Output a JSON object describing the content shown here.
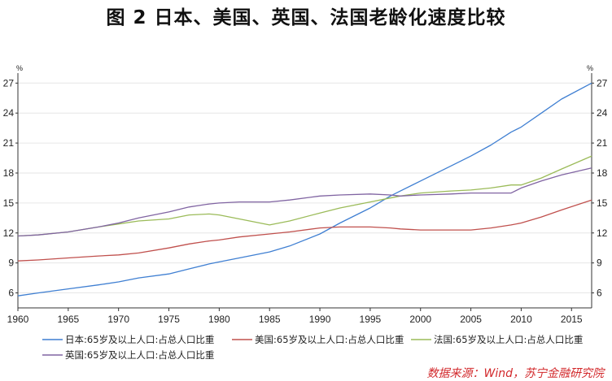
{
  "title": "图 2    日本、美国、英国、法国老龄化速度比较",
  "source": "数据来源：Wind，苏宁金融研究院",
  "chart_data": {
    "type": "line",
    "ylim": [
      4.5,
      28
    ],
    "xlim": [
      1960,
      2017
    ],
    "y_unit_left": "%",
    "y_unit_right": "%",
    "yticks": [
      6,
      9,
      12,
      15,
      18,
      21,
      24,
      27
    ],
    "xticks": [
      1960,
      1965,
      1970,
      1975,
      1980,
      1985,
      1990,
      1995,
      2000,
      2005,
      2010,
      2015
    ],
    "grid": true,
    "legend_position": "bottom",
    "x": [
      1960,
      1962,
      1965,
      1968,
      1970,
      1972,
      1975,
      1977,
      1979,
      1980,
      1982,
      1985,
      1987,
      1990,
      1992,
      1995,
      1997,
      1998,
      2000,
      2003,
      2005,
      2007,
      2009,
      2010,
      2012,
      2014,
      2017
    ],
    "series": [
      {
        "name": "日本:65岁及以上人口:占总人口比重",
        "color": "#3f7fd2",
        "values": [
          5.7,
          6.0,
          6.4,
          6.8,
          7.1,
          7.5,
          7.9,
          8.4,
          8.9,
          9.1,
          9.5,
          10.1,
          10.7,
          11.9,
          13.0,
          14.5,
          15.7,
          16.2,
          17.2,
          18.7,
          19.7,
          20.8,
          22.1,
          22.6,
          24.0,
          25.4,
          27.0
        ]
      },
      {
        "name": "美国:65岁及以上人口:占总人口比重",
        "color": "#c0504d",
        "values": [
          9.2,
          9.3,
          9.5,
          9.7,
          9.8,
          10.0,
          10.5,
          10.9,
          11.2,
          11.3,
          11.6,
          11.9,
          12.1,
          12.5,
          12.6,
          12.6,
          12.5,
          12.4,
          12.3,
          12.3,
          12.3,
          12.5,
          12.8,
          13.0,
          13.6,
          14.3,
          15.3
        ]
      },
      {
        "name": "法国:65岁及以上人口:占总人口比重",
        "color": "#9bbb59",
        "values": [
          11.7,
          11.8,
          12.1,
          12.6,
          12.9,
          13.2,
          13.4,
          13.8,
          13.9,
          13.8,
          13.4,
          12.8,
          13.2,
          14.0,
          14.5,
          15.1,
          15.5,
          15.7,
          16.0,
          16.2,
          16.3,
          16.5,
          16.8,
          16.8,
          17.5,
          18.4,
          19.7
        ]
      },
      {
        "name": "英国:65岁及以上人口:占总人口比重",
        "color": "#8064a2",
        "values": [
          11.7,
          11.8,
          12.1,
          12.6,
          13.0,
          13.5,
          14.1,
          14.6,
          14.9,
          15.0,
          15.1,
          15.1,
          15.3,
          15.7,
          15.8,
          15.9,
          15.8,
          15.7,
          15.8,
          15.9,
          16.0,
          16.0,
          16.0,
          16.5,
          17.2,
          17.8,
          18.5
        ]
      }
    ]
  }
}
